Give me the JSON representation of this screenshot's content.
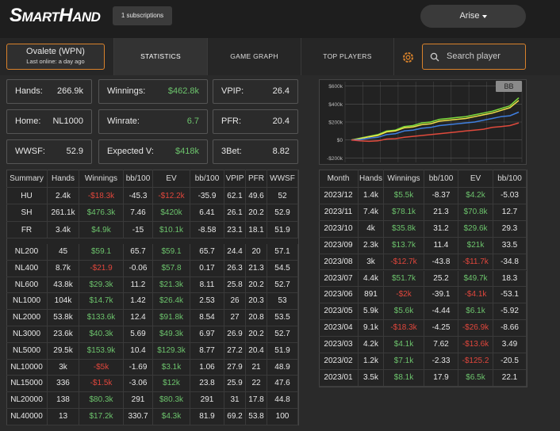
{
  "header": {
    "logo": "SmartHand",
    "subscriptions": "1 subscriptions",
    "user": "Arise"
  },
  "player": {
    "name": "Ovalete (WPN)",
    "last_online": "Last online: a day ago"
  },
  "tabs": [
    "STATISTICS",
    "GAME GRAPH",
    "TOP PLAYERS"
  ],
  "search_placeholder": "Search player",
  "stats": [
    {
      "label": "Hands:",
      "value": "266.9k"
    },
    {
      "label": "Winnings:",
      "value": "$462.8k"
    },
    {
      "label": "VPIP:",
      "value": "26.4"
    },
    {
      "label": "Home:",
      "value": "NL1000"
    },
    {
      "label": "Winrate:",
      "value": "6.7"
    },
    {
      "label": "PFR:",
      "value": "20.4"
    },
    {
      "label": "WWSF:",
      "value": "52.9"
    },
    {
      "label": "Expected V:",
      "value": "$418k"
    },
    {
      "label": "3Bet:",
      "value": "8.82"
    }
  ],
  "graph": {
    "button": "BB",
    "ylim": [
      -250000,
      650000
    ],
    "yticks": [
      {
        "value": 600000,
        "label": "$600k"
      },
      {
        "value": 400000,
        "label": "$400k"
      },
      {
        "value": 200000,
        "label": "$200k"
      },
      {
        "value": 0,
        "label": "$0"
      },
      {
        "value": -200000,
        "label": "-$200k"
      }
    ],
    "series": [
      {
        "color": "#7ddc3c",
        "values": [
          0,
          20000,
          40000,
          60000,
          100000,
          110000,
          150000,
          160000,
          190000,
          200000,
          230000,
          240000,
          250000,
          260000,
          280000,
          300000,
          320000,
          350000,
          380000,
          470000
        ]
      },
      {
        "color": "#f0e24a",
        "values": [
          0,
          15000,
          35000,
          50000,
          90000,
          100000,
          135000,
          145000,
          170000,
          180000,
          210000,
          220000,
          230000,
          240000,
          260000,
          280000,
          300000,
          330000,
          360000,
          440000
        ]
      },
      {
        "color": "#3f7fe0",
        "values": [
          0,
          5000,
          20000,
          30000,
          60000,
          70000,
          100000,
          110000,
          130000,
          140000,
          160000,
          170000,
          180000,
          190000,
          200000,
          220000,
          240000,
          260000,
          270000,
          310000
        ]
      },
      {
        "color": "#e04a3c",
        "values": [
          0,
          -10000,
          -15000,
          -10000,
          10000,
          15000,
          30000,
          40000,
          50000,
          60000,
          70000,
          80000,
          90000,
          100000,
          110000,
          120000,
          140000,
          150000,
          160000,
          190000
        ]
      }
    ]
  },
  "summary": {
    "header": [
      "Summary",
      "Hands",
      "Winnings",
      "bb/100",
      "EV",
      "bb/100",
      "VPIP",
      "PFR",
      "WWSF"
    ],
    "groups": [
      [
        [
          "HU",
          "2.4k",
          "-$18.3k",
          "-45.3",
          "-$12.2k",
          "-35.9",
          "62.1",
          "49.6",
          "52"
        ],
        [
          "SH",
          "261.1k",
          "$476.3k",
          "7.46",
          "$420k",
          "6.41",
          "26.1",
          "20.2",
          "52.9"
        ],
        [
          "FR",
          "3.4k",
          "$4.9k",
          "-15",
          "$10.1k",
          "-8.58",
          "23.1",
          "18.1",
          "51.9"
        ]
      ],
      [
        [
          "NL200",
          "45",
          "$59.1",
          "65.7",
          "$59.1",
          "65.7",
          "24.4",
          "20",
          "57.1"
        ],
        [
          "NL400",
          "8.7k",
          "-$21.9",
          "-0.06",
          "$57.8",
          "0.17",
          "26.3",
          "21.3",
          "54.5"
        ],
        [
          "NL600",
          "43.8k",
          "$29.3k",
          "11.2",
          "$21.3k",
          "8.11",
          "25.8",
          "20.2",
          "52.7"
        ],
        [
          "NL1000",
          "104k",
          "$14.7k",
          "1.42",
          "$26.4k",
          "2.53",
          "26",
          "20.3",
          "53"
        ],
        [
          "NL2000",
          "53.8k",
          "$133.6k",
          "12.4",
          "$91.8k",
          "8.54",
          "27",
          "20.8",
          "53.5"
        ],
        [
          "NL3000",
          "23.6k",
          "$40.3k",
          "5.69",
          "$49.3k",
          "6.97",
          "26.9",
          "20.2",
          "52.7"
        ],
        [
          "NL5000",
          "29.5k",
          "$153.9k",
          "10.4",
          "$129.3k",
          "8.77",
          "27.2",
          "20.4",
          "51.9"
        ],
        [
          "NL10000",
          "3k",
          "-$5k",
          "-1.69",
          "$3.1k",
          "1.06",
          "27.9",
          "21",
          "48.9"
        ],
        [
          "NL15000",
          "336",
          "-$1.5k",
          "-3.06",
          "$12k",
          "23.8",
          "25.9",
          "22",
          "47.6"
        ],
        [
          "NL20000",
          "138",
          "$80.3k",
          "291",
          "$80.3k",
          "291",
          "31",
          "17.8",
          "44.8"
        ],
        [
          "NL40000",
          "13",
          "$17.2k",
          "330.7",
          "$4.3k",
          "81.9",
          "69.2",
          "53.8",
          "100"
        ]
      ]
    ]
  },
  "months": {
    "header": [
      "Month",
      "Hands",
      "Winnings",
      "bb/100",
      "EV",
      "bb/100"
    ],
    "rows": [
      [
        "2023/12",
        "1.4k",
        "$5.5k",
        "-8.37",
        "$4.2k",
        "-5.03"
      ],
      [
        "2023/11",
        "7.4k",
        "$78.1k",
        "21.3",
        "$70.8k",
        "12.7"
      ],
      [
        "2023/10",
        "4k",
        "$35.8k",
        "31.2",
        "$29.6k",
        "29.3"
      ],
      [
        "2023/09",
        "2.3k",
        "$13.7k",
        "11.4",
        "$21k",
        "33.5"
      ],
      [
        "2023/08",
        "3k",
        "-$12.7k",
        "-43.8",
        "-$11.7k",
        "-34.8"
      ],
      [
        "2023/07",
        "4.4k",
        "$51.7k",
        "25.2",
        "$49.7k",
        "18.3"
      ],
      [
        "2023/06",
        "891",
        "-$2k",
        "-39.1",
        "-$4.1k",
        "-53.1"
      ],
      [
        "2023/05",
        "5.9k",
        "$5.6k",
        "-4.44",
        "$6.1k",
        "-5.92"
      ],
      [
        "2023/04",
        "9.1k",
        "-$18.3k",
        "-4.25",
        "-$26.9k",
        "-8.66"
      ],
      [
        "2023/03",
        "4.2k",
        "$4.1k",
        "7.62",
        "-$13.6k",
        "3.49"
      ],
      [
        "2023/02",
        "1.2k",
        "$7.1k",
        "-2.33",
        "-$125.2",
        "-20.5"
      ],
      [
        "2023/01",
        "3.5k",
        "$8.1k",
        "17.9",
        "$6.5k",
        "22.1"
      ]
    ]
  }
}
